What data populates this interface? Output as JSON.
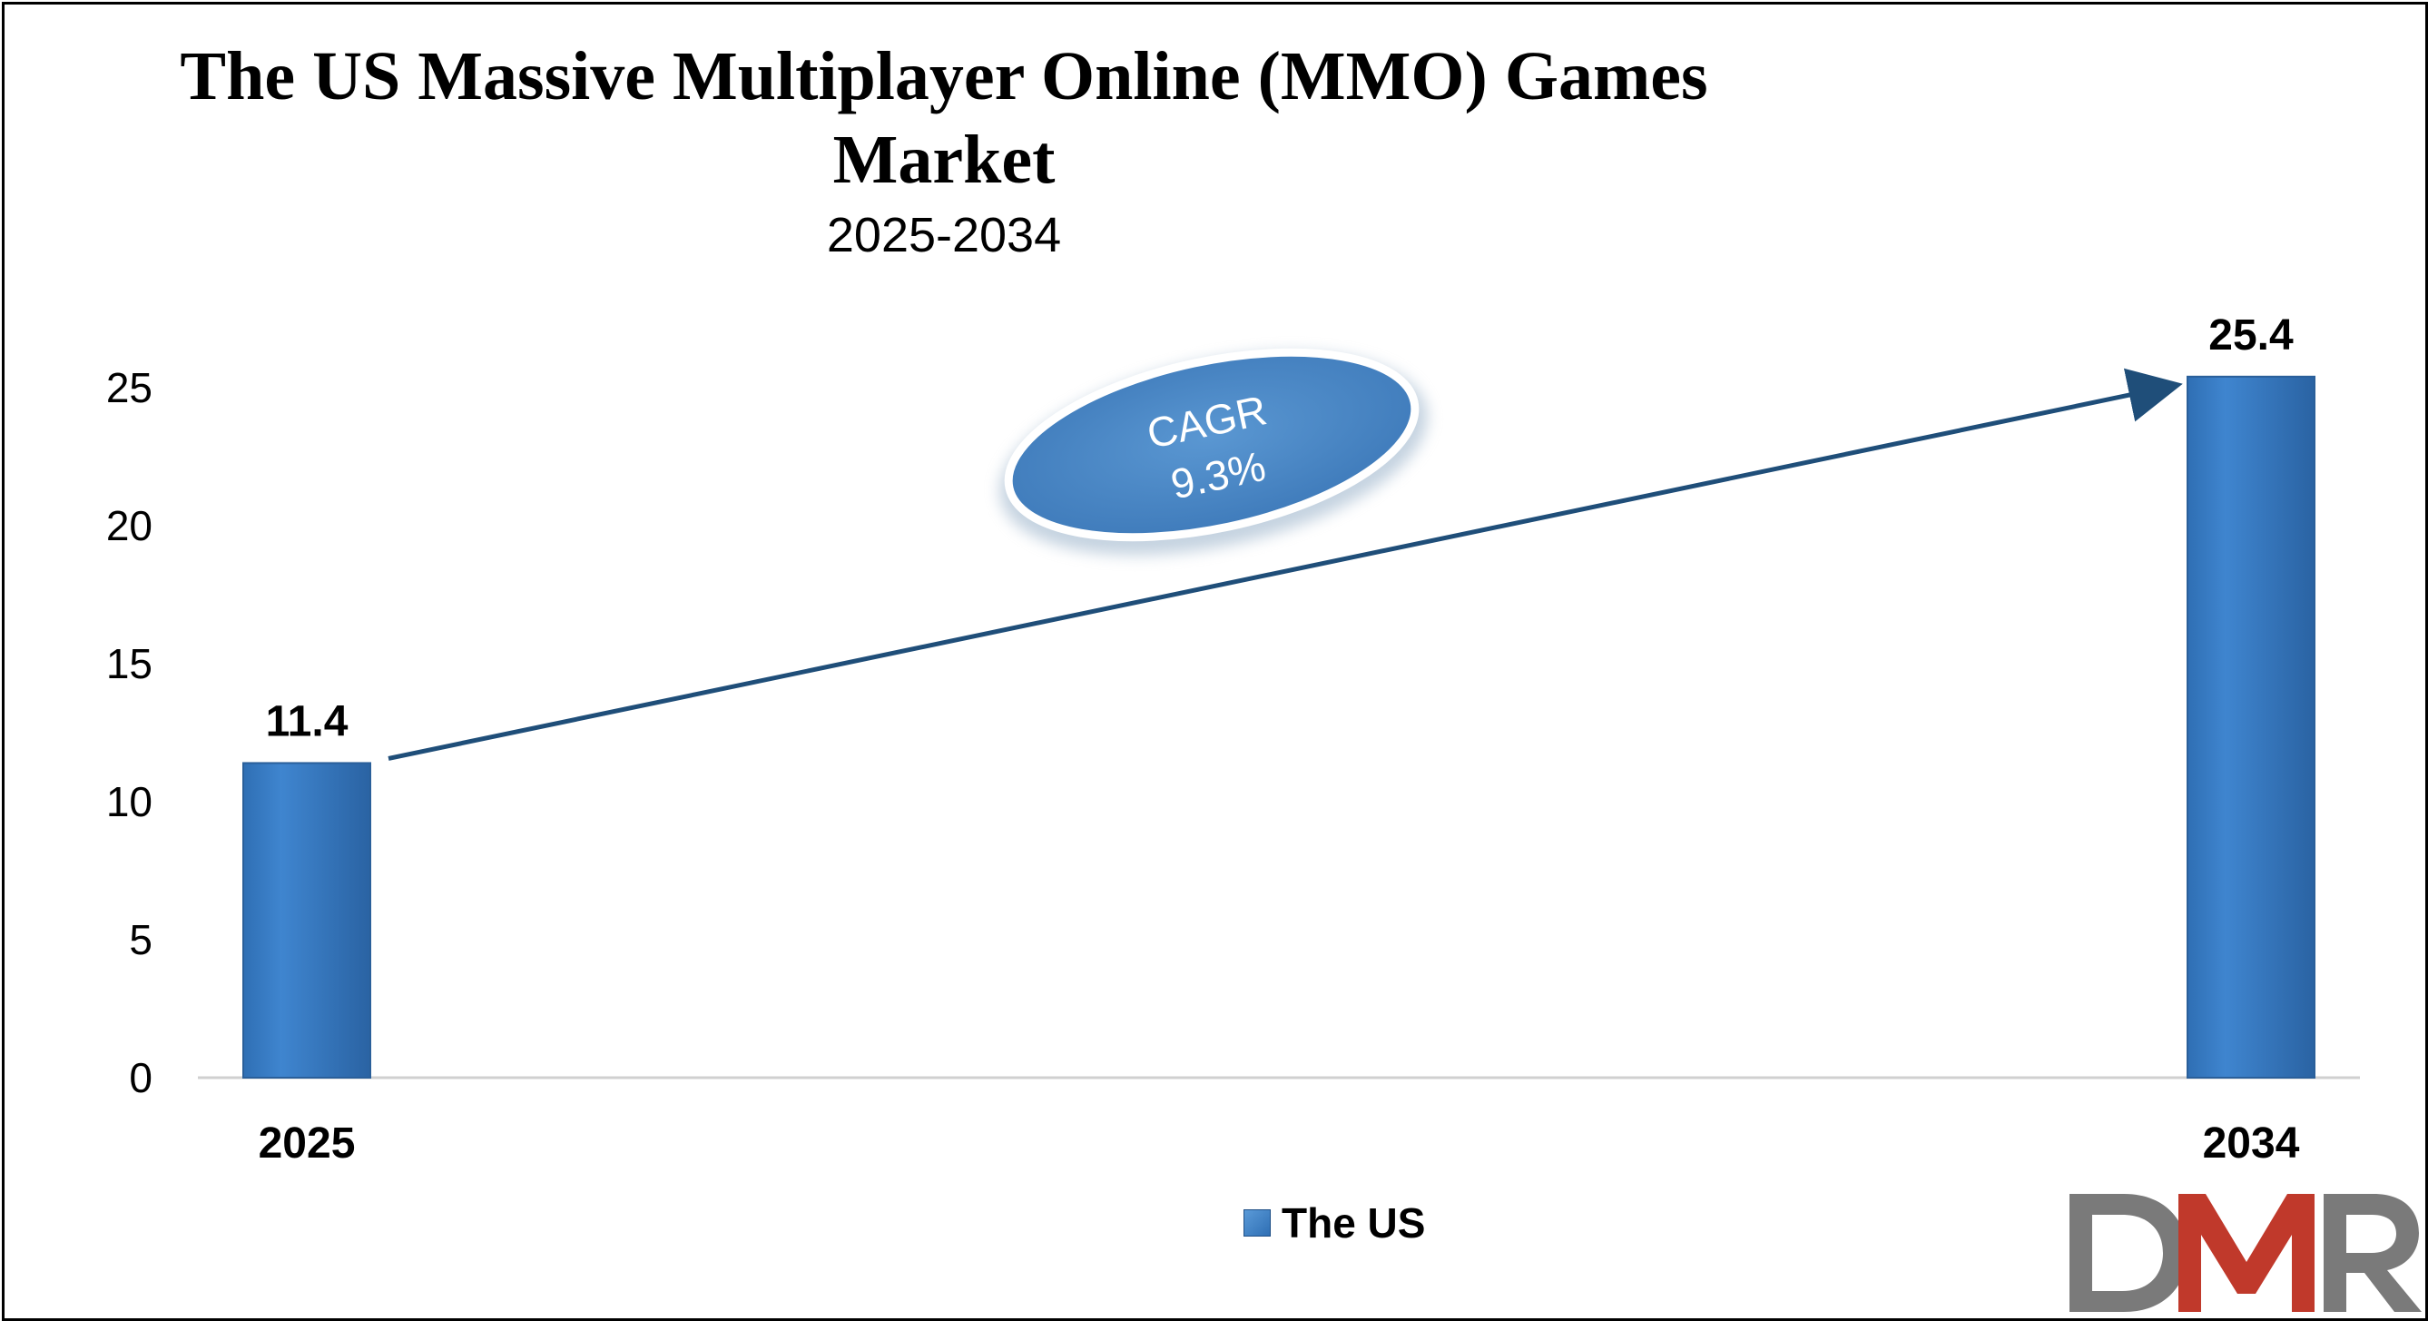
{
  "title_line1": "The US Massive Multiplayer Online (MMO) Games",
  "title_line2": "Market",
  "subtitle": "2025-2034",
  "cagr": {
    "label": "CAGR",
    "value": "9.3%"
  },
  "legend": {
    "label": "The US"
  },
  "logo": {
    "text": "DMR"
  },
  "colors": {
    "bar": "#3a7dc4",
    "bar_dark": "#2a63a3",
    "arrow": "#1f4e79",
    "ellipse": "#4a86c5",
    "logo_d": "#7a7a7a",
    "logo_m": "#c0392b",
    "logo_r": "#7a7a7a"
  },
  "chart_data": {
    "type": "bar",
    "title": "The US Massive Multiplayer Online (MMO) Games Market",
    "subtitle": "2025-2034",
    "categories": [
      "2025",
      "2034"
    ],
    "series": [
      {
        "name": "The US",
        "values": [
          11.4,
          25.4
        ]
      }
    ],
    "value_labels": [
      "11.4",
      "25.4"
    ],
    "ylim": [
      0,
      25
    ],
    "yticks": [
      0,
      5,
      10,
      15,
      20,
      25
    ],
    "xlabel": "",
    "ylabel": "",
    "grid": false,
    "legend_position": "bottom",
    "annotation": "CAGR 9.3%"
  }
}
